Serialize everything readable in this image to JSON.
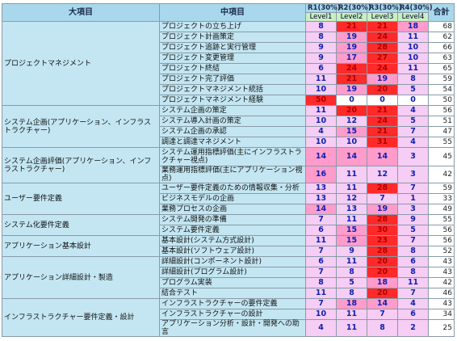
{
  "header": {
    "major": "大項目",
    "middle": "中項目",
    "rounds": [
      "R1(30%)",
      "R2(30%)",
      "R3(30%)",
      "R4(30%)"
    ],
    "levels": [
      "Level1",
      "Level2",
      "Level3",
      "Level4"
    ],
    "total": "合計"
  },
  "groups": [
    {
      "label": "プロジェクトマネジメント",
      "rows": [
        {
          "item": "プロジェクトの立ち上げ",
          "values": [
            8,
            21,
            21,
            18
          ],
          "total": 68
        },
        {
          "item": "プロジェクト計画策定",
          "values": [
            8,
            19,
            24,
            11
          ],
          "total": 62
        },
        {
          "item": "プロジェクト追跡と実行管理",
          "values": [
            9,
            19,
            28,
            10
          ],
          "total": 66
        },
        {
          "item": "プロジェクト変更管理",
          "values": [
            9,
            17,
            27,
            10
          ],
          "total": 63
        },
        {
          "item": "プロジェクト終結",
          "values": [
            6,
            24,
            24,
            11
          ],
          "total": 65
        },
        {
          "item": "プロジェクト完了評価",
          "values": [
            11,
            21,
            19,
            8
          ],
          "total": 59
        },
        {
          "item": "プロジェクトマネジメント統括",
          "values": [
            10,
            19,
            20,
            5
          ],
          "total": 54
        },
        {
          "item": "プロジェクトマネジメント経験",
          "values": [
            50,
            0,
            0,
            0
          ],
          "total": 50
        }
      ]
    },
    {
      "label": "システム企画(アプリケーション、インフラストラクチャー)",
      "rows": [
        {
          "item": "システム企画の策定",
          "values": [
            11,
            20,
            21,
            4
          ],
          "total": 56
        },
        {
          "item": "システム導入計画の策定",
          "values": [
            10,
            12,
            24,
            5
          ],
          "total": 51
        },
        {
          "item": "システム企画の承認",
          "values": [
            4,
            15,
            21,
            7
          ],
          "total": 47
        },
        {
          "item": "調達と調達マネジメント",
          "values": [
            10,
            10,
            31,
            4
          ],
          "total": 55
        }
      ]
    },
    {
      "label": "システム企画評価(アプリケーション、インフラストラクチャー)",
      "rows": [
        {
          "item": "システム運用指標評価(主にインフラストラクチャー視点)",
          "values": [
            14,
            14,
            14,
            3
          ],
          "total": 45
        },
        {
          "item": "業務運用指標評価(主にアプリケーション視点)",
          "values": [
            16,
            11,
            12,
            3
          ],
          "total": 42
        }
      ]
    },
    {
      "label": "ユーザー要件定義",
      "rows": [
        {
          "item": "ユーザー要件定義のための情報収集・分析",
          "values": [
            13,
            11,
            28,
            7
          ],
          "total": 59
        },
        {
          "item": "ビジネスモデルの企画",
          "values": [
            13,
            12,
            7,
            1
          ],
          "total": 33
        },
        {
          "item": "業務プロセスの企画",
          "values": [
            14,
            13,
            19,
            3
          ],
          "total": 49
        }
      ]
    },
    {
      "label": "システム化要件定義",
      "rows": [
        {
          "item": "システム開発の準備",
          "values": [
            7,
            11,
            28,
            9
          ],
          "total": 55
        },
        {
          "item": "システム要件定義",
          "values": [
            6,
            15,
            30,
            5
          ],
          "total": 56
        }
      ]
    },
    {
      "label": "アプリケーション基本設計",
      "rows": [
        {
          "item": "基本設計(システム方式設計)",
          "values": [
            11,
            15,
            23,
            7
          ],
          "total": 56
        },
        {
          "item": "基本設計(ソフトウェア設計)",
          "values": [
            7,
            9,
            28,
            8
          ],
          "total": 52
        }
      ]
    },
    {
      "label": "アプリケーション詳細設計・製造",
      "rows": [
        {
          "item": "詳細設計(コンポーネント設計)",
          "values": [
            6,
            11,
            20,
            6
          ],
          "total": 43
        },
        {
          "item": "詳細設計(プログラム設計)",
          "values": [
            7,
            8,
            20,
            8
          ],
          "total": 43
        },
        {
          "item": "プログラム実装",
          "values": [
            8,
            5,
            18,
            11
          ],
          "total": 42
        },
        {
          "item": "結合テスト",
          "values": [
            11,
            8,
            20,
            7
          ],
          "total": 46
        }
      ]
    },
    {
      "label": "インフラストラクチャー要件定義・設計",
      "rows": [
        {
          "item": "インフラストラクチャーの要件定義",
          "values": [
            7,
            18,
            14,
            4
          ],
          "total": 43
        },
        {
          "item": "インフラストラクチャーの設計",
          "values": [
            10,
            11,
            7,
            6
          ],
          "total": 34
        },
        {
          "item": "アプリケーション分析・設計・開発への助言",
          "values": [
            4,
            11,
            8,
            2
          ],
          "total": 25
        }
      ]
    }
  ]
}
